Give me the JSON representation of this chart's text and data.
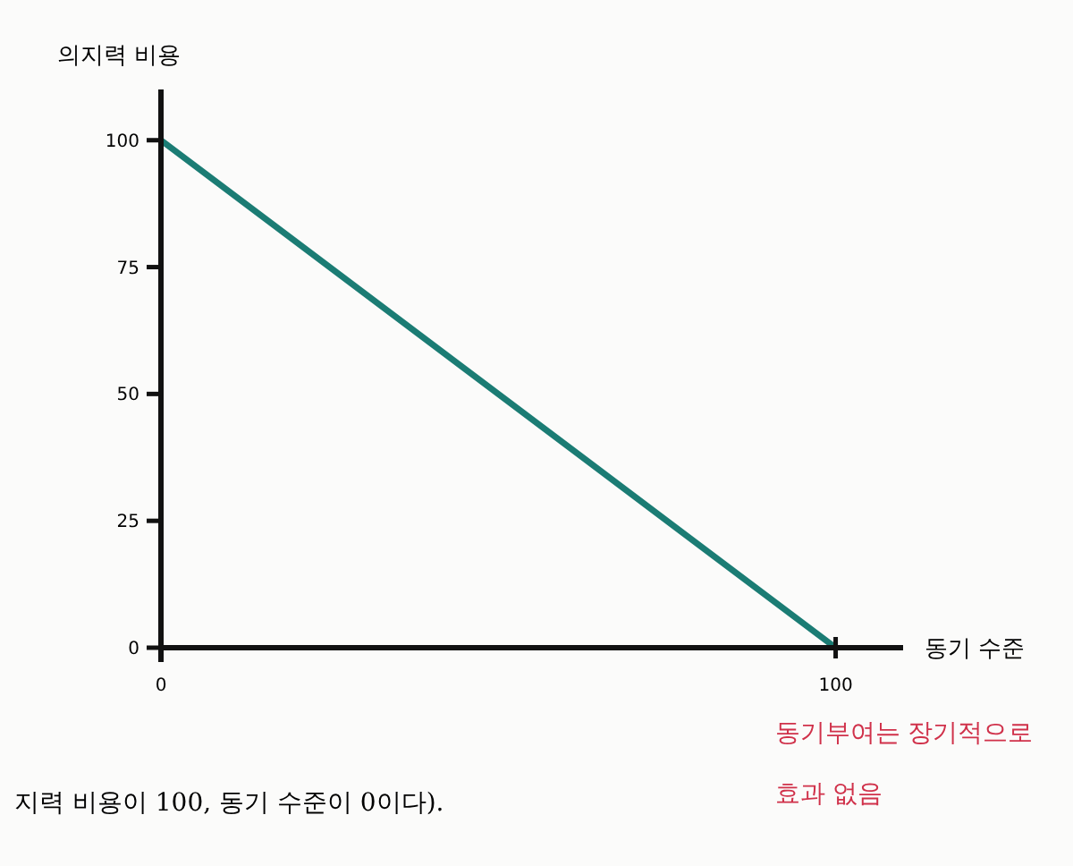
{
  "chart_data": {
    "type": "line",
    "xlabel": "동기 수준",
    "ylabel": "의지력 비용",
    "x": [
      0,
      100
    ],
    "series": [
      {
        "color": "#1b7c74",
        "values": [
          100,
          0
        ]
      }
    ],
    "xlim": [
      0,
      110
    ],
    "ylim": [
      0,
      110
    ],
    "xticks": [
      0,
      100
    ],
    "yticks": [
      0,
      25,
      50,
      75,
      100
    ],
    "grid": false,
    "marker": "none",
    "line_style": "solid",
    "annotations": [
      "동기부여는 장기적으로 효과 없음",
      "지력 비용이 100, 동기 수준이 0이다)."
    ]
  }
}
